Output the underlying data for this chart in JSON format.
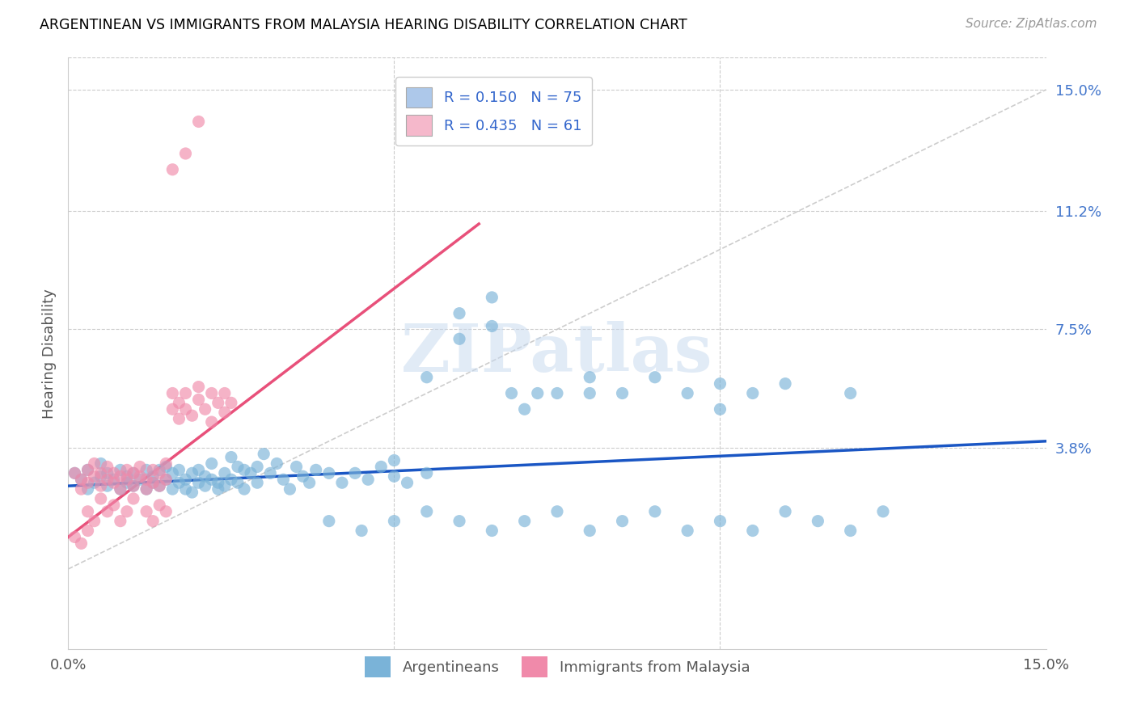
{
  "title": "ARGENTINEAN VS IMMIGRANTS FROM MALAYSIA HEARING DISABILITY CORRELATION CHART",
  "source": "Source: ZipAtlas.com",
  "ylabel_label": "Hearing Disability",
  "ytick_labels": [
    "15.0%",
    "11.2%",
    "7.5%",
    "3.8%"
  ],
  "ytick_values": [
    0.15,
    0.112,
    0.075,
    0.038
  ],
  "xmin": 0.0,
  "xmax": 0.15,
  "ymin": -0.025,
  "ymax": 0.16,
  "legend_entries": [
    {
      "label": "R = 0.150   N = 75",
      "color": "#adc8ea"
    },
    {
      "label": "R = 0.435   N = 61",
      "color": "#f5b8cb"
    }
  ],
  "watermark_text": "ZIPatlas",
  "blue_color": "#7ab3d8",
  "pink_color": "#f08aaa",
  "blue_line_color": "#1a56c4",
  "pink_line_color": "#e8507a",
  "diagonal_line_color": "#c8c8c8",
  "legend_text_color": "#3366cc",
  "ytick_color": "#4477cc",
  "blue_line_x0": 0.0,
  "blue_line_y0": 0.026,
  "blue_line_x1": 0.15,
  "blue_line_y1": 0.04,
  "pink_line_x0": 0.0,
  "pink_line_y0": 0.01,
  "pink_line_x1": 0.063,
  "pink_line_y1": 0.108,
  "blue_scatter": [
    [
      0.001,
      0.03
    ],
    [
      0.002,
      0.028
    ],
    [
      0.003,
      0.025
    ],
    [
      0.003,
      0.031
    ],
    [
      0.004,
      0.027
    ],
    [
      0.005,
      0.029
    ],
    [
      0.005,
      0.033
    ],
    [
      0.006,
      0.026
    ],
    [
      0.006,
      0.03
    ],
    [
      0.007,
      0.028
    ],
    [
      0.008,
      0.031
    ],
    [
      0.008,
      0.025
    ],
    [
      0.009,
      0.029
    ],
    [
      0.009,
      0.027
    ],
    [
      0.01,
      0.03
    ],
    [
      0.01,
      0.026
    ],
    [
      0.011,
      0.028
    ],
    [
      0.012,
      0.031
    ],
    [
      0.012,
      0.025
    ],
    [
      0.013,
      0.029
    ],
    [
      0.013,
      0.027
    ],
    [
      0.014,
      0.026
    ],
    [
      0.014,
      0.031
    ],
    [
      0.015,
      0.028
    ],
    [
      0.015,
      0.032
    ],
    [
      0.016,
      0.03
    ],
    [
      0.016,
      0.025
    ],
    [
      0.017,
      0.027
    ],
    [
      0.017,
      0.031
    ],
    [
      0.018,
      0.028
    ],
    [
      0.018,
      0.025
    ],
    [
      0.019,
      0.03
    ],
    [
      0.019,
      0.024
    ],
    [
      0.02,
      0.027
    ],
    [
      0.02,
      0.031
    ],
    [
      0.021,
      0.029
    ],
    [
      0.021,
      0.026
    ],
    [
      0.022,
      0.028
    ],
    [
      0.022,
      0.033
    ],
    [
      0.023,
      0.027
    ],
    [
      0.023,
      0.025
    ],
    [
      0.024,
      0.03
    ],
    [
      0.024,
      0.026
    ],
    [
      0.025,
      0.035
    ],
    [
      0.025,
      0.028
    ],
    [
      0.026,
      0.032
    ],
    [
      0.026,
      0.027
    ],
    [
      0.027,
      0.031
    ],
    [
      0.027,
      0.025
    ],
    [
      0.028,
      0.03
    ],
    [
      0.029,
      0.027
    ],
    [
      0.029,
      0.032
    ],
    [
      0.03,
      0.036
    ],
    [
      0.031,
      0.03
    ],
    [
      0.032,
      0.033
    ],
    [
      0.033,
      0.028
    ],
    [
      0.034,
      0.025
    ],
    [
      0.035,
      0.032
    ],
    [
      0.036,
      0.029
    ],
    [
      0.037,
      0.027
    ],
    [
      0.038,
      0.031
    ],
    [
      0.04,
      0.03
    ],
    [
      0.042,
      0.027
    ],
    [
      0.044,
      0.03
    ],
    [
      0.046,
      0.028
    ],
    [
      0.048,
      0.032
    ],
    [
      0.05,
      0.029
    ],
    [
      0.05,
      0.034
    ],
    [
      0.052,
      0.027
    ],
    [
      0.055,
      0.03
    ],
    [
      0.055,
      0.06
    ],
    [
      0.06,
      0.072
    ],
    [
      0.06,
      0.08
    ],
    [
      0.065,
      0.076
    ],
    [
      0.065,
      0.085
    ],
    [
      0.068,
      0.055
    ],
    [
      0.07,
      0.05
    ],
    [
      0.072,
      0.055
    ],
    [
      0.075,
      0.055
    ],
    [
      0.08,
      0.055
    ],
    [
      0.08,
      0.06
    ],
    [
      0.085,
      0.055
    ],
    [
      0.09,
      0.06
    ],
    [
      0.095,
      0.055
    ],
    [
      0.1,
      0.058
    ],
    [
      0.1,
      0.05
    ],
    [
      0.105,
      0.055
    ],
    [
      0.11,
      0.058
    ],
    [
      0.12,
      0.055
    ],
    [
      0.125,
      0.018
    ],
    [
      0.04,
      0.015
    ],
    [
      0.045,
      0.012
    ],
    [
      0.05,
      0.015
    ],
    [
      0.055,
      0.018
    ],
    [
      0.06,
      0.015
    ],
    [
      0.065,
      0.012
    ],
    [
      0.07,
      0.015
    ],
    [
      0.075,
      0.018
    ],
    [
      0.08,
      0.012
    ],
    [
      0.085,
      0.015
    ],
    [
      0.09,
      0.018
    ],
    [
      0.095,
      0.012
    ],
    [
      0.1,
      0.015
    ],
    [
      0.105,
      0.012
    ],
    [
      0.11,
      0.018
    ],
    [
      0.115,
      0.015
    ],
    [
      0.12,
      0.012
    ]
  ],
  "pink_scatter": [
    [
      0.001,
      0.03
    ],
    [
      0.002,
      0.028
    ],
    [
      0.002,
      0.025
    ],
    [
      0.003,
      0.031
    ],
    [
      0.003,
      0.027
    ],
    [
      0.004,
      0.029
    ],
    [
      0.004,
      0.033
    ],
    [
      0.005,
      0.03
    ],
    [
      0.005,
      0.026
    ],
    [
      0.006,
      0.028
    ],
    [
      0.006,
      0.032
    ],
    [
      0.007,
      0.027
    ],
    [
      0.007,
      0.03
    ],
    [
      0.008,
      0.029
    ],
    [
      0.008,
      0.025
    ],
    [
      0.009,
      0.031
    ],
    [
      0.009,
      0.028
    ],
    [
      0.01,
      0.03
    ],
    [
      0.01,
      0.026
    ],
    [
      0.011,
      0.029
    ],
    [
      0.011,
      0.032
    ],
    [
      0.012,
      0.028
    ],
    [
      0.012,
      0.025
    ],
    [
      0.013,
      0.031
    ],
    [
      0.013,
      0.027
    ],
    [
      0.014,
      0.03
    ],
    [
      0.014,
      0.026
    ],
    [
      0.015,
      0.028
    ],
    [
      0.015,
      0.033
    ],
    [
      0.016,
      0.05
    ],
    [
      0.016,
      0.055
    ],
    [
      0.017,
      0.052
    ],
    [
      0.017,
      0.047
    ],
    [
      0.018,
      0.055
    ],
    [
      0.018,
      0.05
    ],
    [
      0.019,
      0.048
    ],
    [
      0.02,
      0.053
    ],
    [
      0.02,
      0.057
    ],
    [
      0.021,
      0.05
    ],
    [
      0.022,
      0.055
    ],
    [
      0.022,
      0.046
    ],
    [
      0.023,
      0.052
    ],
    [
      0.024,
      0.049
    ],
    [
      0.024,
      0.055
    ],
    [
      0.025,
      0.052
    ],
    [
      0.001,
      0.01
    ],
    [
      0.002,
      0.008
    ],
    [
      0.003,
      0.012
    ],
    [
      0.004,
      0.015
    ],
    [
      0.003,
      0.018
    ],
    [
      0.005,
      0.022
    ],
    [
      0.006,
      0.018
    ],
    [
      0.007,
      0.02
    ],
    [
      0.008,
      0.015
    ],
    [
      0.009,
      0.018
    ],
    [
      0.01,
      0.022
    ],
    [
      0.012,
      0.018
    ],
    [
      0.013,
      0.015
    ],
    [
      0.014,
      0.02
    ],
    [
      0.015,
      0.018
    ],
    [
      0.018,
      0.13
    ],
    [
      0.02,
      0.14
    ],
    [
      0.016,
      0.125
    ]
  ]
}
